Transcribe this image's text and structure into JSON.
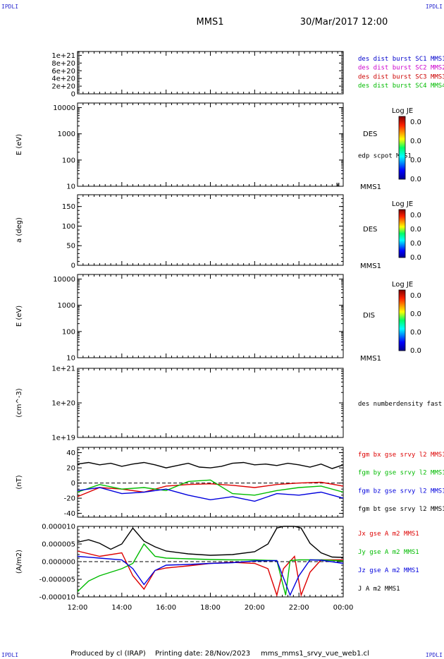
{
  "corner_labels": [
    "IPDLI",
    "IPDLI",
    "IPDLI",
    "IPDLI"
  ],
  "header": {
    "spacecraft": "MMS1",
    "datetime": "30/Mar/2017 12:00"
  },
  "footer": {
    "produced_by": "Produced by cl (IRAP)",
    "printing_date": "Printing date: 28/Nov/2023",
    "script": "mms_mms1_srvy_vue_web1.cl"
  },
  "time_axis": {
    "start": "2017-03-30T12:00",
    "end": "2017-03-31T00:00",
    "tick_labels": [
      "12:00",
      "14:00",
      "16:00",
      "18:00",
      "20:00",
      "22:00",
      "00:00"
    ]
  },
  "chart_data": [
    {
      "type": "line",
      "id": "burst",
      "ylabel": "",
      "ylim": [
        0,
        1.1e+21
      ],
      "tick_values": [
        0,
        2e+20,
        4e+20,
        6e+20,
        8e+20,
        1e+21
      ],
      "tick_labels": [
        "0",
        "2e+20",
        "4e+20",
        "6e+20",
        "8e+20",
        "1e+21"
      ],
      "reference_line": 0,
      "legend": [
        {
          "name": "des dist burst SC1 MMS1",
          "color": "#0000cc"
        },
        {
          "name": "des dist burst SC2 MMS2",
          "color": "#cc00cc"
        },
        {
          "name": "des dist burst SC3 MMS3",
          "color": "#cc0000"
        },
        {
          "name": "des dist burst SC4 MMS4",
          "color": "#00bb00"
        }
      ]
    },
    {
      "type": "heatmap",
      "id": "des-energy",
      "ylabel": "E (eV)",
      "scale": "log",
      "ylim": [
        10,
        15000
      ],
      "tick_values": [
        10,
        100,
        1000,
        10000
      ],
      "tick_labels": [
        "10",
        "100",
        "1000",
        "10000"
      ],
      "side_label": "DES",
      "bottom_label": "MMS1",
      "extra_label": "edp scpot MMS1",
      "colorbar": {
        "title": "Log JE",
        "tick_labels": [
          "0.0",
          "0.0",
          "0.0",
          "0.0"
        ]
      }
    },
    {
      "type": "heatmap",
      "id": "des-pitch",
      "ylabel": "a (deg)",
      "ylim": [
        0,
        180
      ],
      "tick_values": [
        0,
        50,
        100,
        150
      ],
      "tick_labels": [
        "0",
        "50",
        "100",
        "150"
      ],
      "side_label": "DES",
      "bottom_label": "MMS1",
      "colorbar": {
        "title": "Log JE",
        "tick_labels": [
          "0.0",
          "0.0",
          "0.0",
          "0.0"
        ]
      }
    },
    {
      "type": "heatmap",
      "id": "dis-energy",
      "ylabel": "E (eV)",
      "scale": "log",
      "ylim": [
        10,
        15000
      ],
      "tick_values": [
        10,
        100,
        1000,
        10000
      ],
      "tick_labels": [
        "10",
        "100",
        "1000",
        "10000"
      ],
      "side_label": "DIS",
      "bottom_label": "MMS1",
      "colorbar": {
        "title": "Log JE",
        "tick_labels": [
          "0.0",
          "0.0",
          "0.0",
          "0.0"
        ]
      }
    },
    {
      "type": "line",
      "id": "density",
      "ylabel": "(cm^-3)",
      "scale": "log",
      "ylim": [
        1e+19,
        1e+21
      ],
      "tick_values": [
        1e+19,
        1e+20,
        1e+21
      ],
      "tick_labels": [
        "1e+19",
        "1e+20",
        "1e+21"
      ],
      "legend": [
        {
          "name": "des numberdensity fast M",
          "color": "#000000"
        }
      ]
    },
    {
      "type": "line",
      "id": "fgm",
      "ylabel": "(nT)",
      "ylim": [
        -45,
        47
      ],
      "tick_values": [
        -40,
        -20,
        0,
        20,
        40
      ],
      "tick_labels": [
        "-40",
        "-20",
        "0",
        "20",
        "40"
      ],
      "reference_line": 0,
      "legend": [
        {
          "name": "fgm bx gse srvy l2 MMS1",
          "color": "#dd0000"
        },
        {
          "name": "fgm by gse srvy l2 MMS1",
          "color": "#00bb00"
        },
        {
          "name": "fgm bz gse srvy l2 MMS1",
          "color": "#0000dd"
        },
        {
          "name": "fgm bt gse srvy l2 MMS1",
          "color": "#000000"
        }
      ],
      "series": [
        {
          "name": "fgm bt gse srvy l2 MMS1",
          "color": "#000000",
          "x": [
            12.0,
            12.5,
            13.0,
            13.5,
            14.0,
            14.5,
            15.0,
            15.5,
            16.0,
            16.5,
            17.0,
            17.5,
            18.0,
            18.5,
            19.0,
            19.5,
            20.0,
            20.5,
            21.0,
            21.5,
            22.0,
            22.5,
            23.0,
            23.5,
            24.0
          ],
          "y": [
            25,
            27,
            24,
            26,
            22,
            25,
            27,
            24,
            20,
            23,
            26,
            21,
            20,
            22,
            26,
            27,
            24,
            25,
            23,
            26,
            24,
            21,
            25,
            19,
            24
          ]
        },
        {
          "name": "fgm bx gse srvy l2 MMS1",
          "color": "#dd0000",
          "x": [
            12.0,
            13.0,
            14.0,
            15.0,
            16.0,
            17.0,
            18.0,
            19.0,
            20.0,
            21.0,
            22.0,
            23.0,
            24.0
          ],
          "y": [
            -18,
            -6,
            -8,
            -12,
            -4,
            -2,
            -1,
            -3,
            -6,
            -2,
            0,
            1,
            -4
          ]
        },
        {
          "name": "fgm by gse srvy l2 MMS1",
          "color": "#00bb00",
          "x": [
            12.0,
            13.0,
            14.0,
            15.0,
            16.0,
            17.0,
            18.0,
            19.0,
            20.0,
            21.0,
            22.0,
            23.0,
            24.0
          ],
          "y": [
            -12,
            -2,
            -8,
            -6,
            -10,
            2,
            4,
            -14,
            -16,
            -10,
            -6,
            -4,
            -12
          ]
        },
        {
          "name": "fgm bz gse srvy l2 MMS1",
          "color": "#0000dd",
          "x": [
            12.0,
            13.0,
            14.0,
            15.0,
            16.0,
            17.0,
            18.0,
            19.0,
            20.0,
            21.0,
            22.0,
            23.0,
            24.0
          ],
          "y": [
            -10,
            -6,
            -14,
            -12,
            -8,
            -16,
            -22,
            -18,
            -24,
            -14,
            -16,
            -12,
            -20
          ]
        }
      ]
    },
    {
      "type": "line",
      "id": "current",
      "ylabel": "(A/m2)",
      "ylim": [
        -1e-05,
        1e-05
      ],
      "tick_values": [
        -1e-05,
        -5e-06,
        0,
        5e-06,
        1e-05
      ],
      "tick_labels": [
        "-0.000010",
        "-0.000005",
        "0.000000",
        "0.000005",
        "0.000010"
      ],
      "reference_line": 0,
      "legend": [
        {
          "name": "Jx gse A m2 MMS1",
          "color": "#dd0000"
        },
        {
          "name": "Jy gse A m2 MMS1",
          "color": "#00bb00"
        },
        {
          "name": "Jz gse A m2 MMS1",
          "color": "#0000dd"
        },
        {
          "name": "J A m2 MMS1",
          "color": "#000000"
        }
      ],
      "series": [
        {
          "name": "J A m2 MMS1",
          "color": "#000000",
          "x": [
            12.0,
            12.5,
            13.0,
            13.5,
            14.0,
            14.5,
            15.0,
            15.5,
            16.0,
            17.0,
            18.0,
            19.0,
            20.0,
            20.6,
            21.0,
            21.3,
            21.8,
            22.1,
            22.5,
            23.0,
            23.5,
            24.0
          ],
          "y": [
            5.5e-06,
            6.2e-06,
            5.2e-06,
            3.5e-06,
            5e-06,
            9.5e-06,
            5.8e-06,
            4.2e-06,
            3e-06,
            2.2e-06,
            1.8e-06,
            2e-06,
            2.8e-06,
            5e-06,
            9.5e-06,
            1.1e-05,
            1.1e-05,
            9.5e-06,
            5.2e-06,
            2.5e-06,
            1.3e-06,
            1.2e-06
          ]
        },
        {
          "name": "Jx gse A m2 MMS1",
          "color": "#dd0000",
          "x": [
            12.0,
            13.0,
            14.0,
            14.5,
            15.0,
            15.5,
            16.0,
            17.0,
            18.0,
            19.0,
            20.0,
            20.6,
            21.0,
            21.3,
            21.8,
            22.1,
            22.5,
            23.0,
            24.0
          ],
          "y": [
            3e-06,
            1.5e-06,
            2.5e-06,
            -4e-06,
            -7.8e-06,
            -2.5e-06,
            -1.8e-06,
            -1.2e-06,
            -5e-07,
            -2e-07,
            -5e-07,
            -2e-06,
            -9.5e-06,
            -2e-06,
            1.5e-06,
            -9.5e-06,
            -3e-06,
            5e-07,
            5e-07
          ]
        },
        {
          "name": "Jy gse A m2 MMS1",
          "color": "#00bb00",
          "x": [
            12.0,
            12.5,
            13.0,
            13.5,
            14.0,
            14.5,
            15.0,
            15.5,
            16.0,
            17.0,
            18.0,
            19.0,
            20.0,
            21.0,
            21.4,
            21.6,
            22.0,
            23.0,
            24.0
          ],
          "y": [
            -8.5e-06,
            -5.5e-06,
            -4e-06,
            -3e-06,
            -2e-06,
            -5e-07,
            5e-06,
            1.5e-06,
            1e-06,
            8e-07,
            6e-07,
            5e-07,
            5e-07,
            3e-07,
            -9.5e-06,
            3e-07,
            5e-07,
            5e-07,
            2e-07
          ]
        },
        {
          "name": "Jz gse A m2 MMS1",
          "color": "#0000dd",
          "x": [
            12.0,
            13.0,
            14.0,
            14.5,
            15.0,
            15.5,
            16.0,
            17.0,
            18.0,
            19.0,
            20.0,
            21.0,
            21.6,
            22.0,
            22.5,
            23.0,
            24.0
          ],
          "y": [
            1.5e-06,
            1e-06,
            5e-07,
            -2e-06,
            -6.5e-06,
            -2.5e-06,
            -1e-06,
            -8e-07,
            -5e-07,
            -3e-07,
            2e-07,
            3e-07,
            -9.5e-06,
            -4e-06,
            5e-07,
            4e-07,
            -5e-07
          ]
        }
      ]
    }
  ]
}
